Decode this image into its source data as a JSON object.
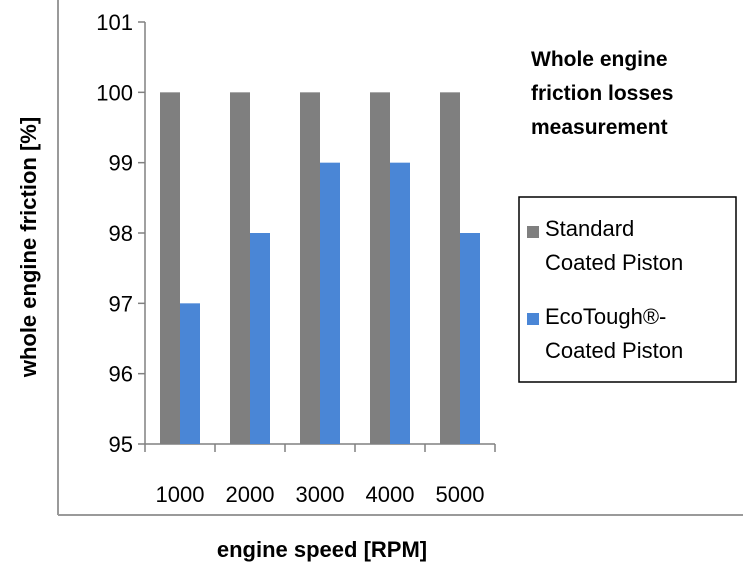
{
  "chart_data": {
    "type": "bar",
    "title_lines": [
      "Whole engine",
      "friction losses",
      "measurement"
    ],
    "xlabel": "engine speed [RPM]",
    "ylabel": "whole engine friction [%]",
    "categories": [
      "1000",
      "2000",
      "3000",
      "4000",
      "5000"
    ],
    "ylim": [
      95,
      101
    ],
    "yticks": [
      "95",
      "96",
      "97",
      "98",
      "99",
      "100",
      "101"
    ],
    "grid": false,
    "legend_position": "right",
    "series": [
      {
        "name_lines": [
          "Standard",
          "Coated Piston"
        ],
        "color": "#7f7f7f",
        "values": [
          100,
          100,
          100,
          100,
          100
        ]
      },
      {
        "name_lines": [
          "EcoTough®-",
          "Coated Piston"
        ],
        "color": "#4a86d6",
        "values": [
          97,
          98,
          99,
          99,
          98
        ]
      }
    ]
  }
}
